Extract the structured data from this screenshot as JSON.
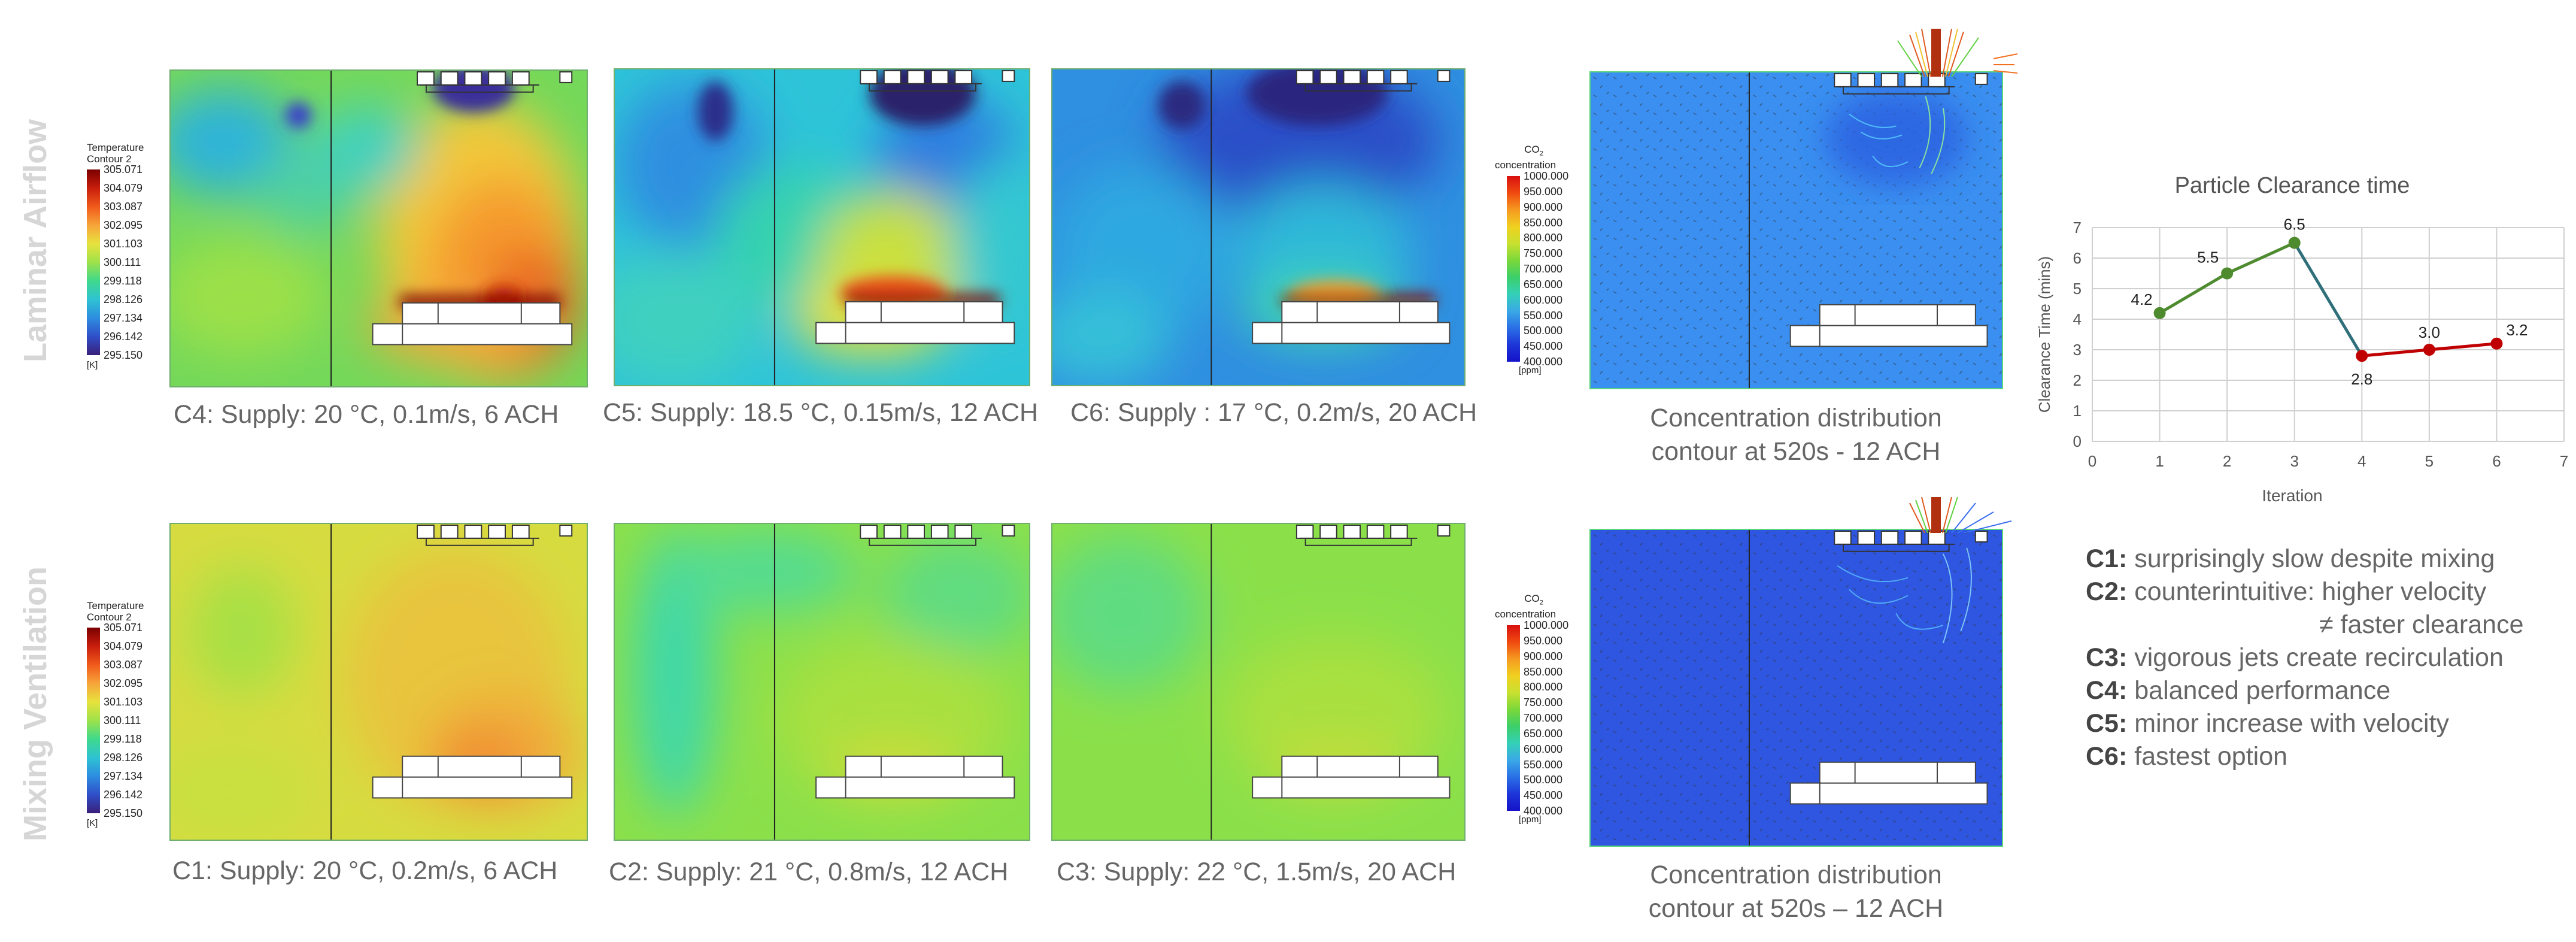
{
  "row_labels": {
    "top": "Laminar Airflow",
    "bottom": "Mixing Ventilation"
  },
  "temp_legend": {
    "title_1": "Temperature",
    "title_2": "Contour 2",
    "ticks": [
      "305.071",
      "304.079",
      "303.087",
      "302.095",
      "301.103",
      "300.111",
      "299.118",
      "298.126",
      "297.134",
      "296.142",
      "295.150"
    ],
    "unit": "[K]"
  },
  "co2_legend": {
    "title_1": "CO",
    "title_sub": "2",
    "title_2": "concentration",
    "ticks": [
      "1000.000",
      "950.000",
      "900.000",
      "850.000",
      "800.000",
      "750.000",
      "700.000",
      "650.000",
      "600.000",
      "550.000",
      "500.000",
      "450.000",
      "400.000"
    ],
    "unit": "[ppm]"
  },
  "captions": {
    "c4": "C4: Supply: 20 °C, 0.1m/s, 6 ACH",
    "c5": "C5: Supply: 18.5 °C, 0.15m/s, 12 ACH",
    "c6": "C6: Supply : 17 °C, 0.2m/s, 20 ACH",
    "c1": "C1: Supply: 20 °C, 0.2m/s, 6 ACH",
    "c2": "C2: Supply: 21 °C, 0.8m/s, 12 ACH",
    "c3": "C3: Supply: 22 °C, 1.5m/s, 20 ACH",
    "conc_top_1": "Concentration distribution",
    "conc_top_2": "contour at 520s - 12 ACH",
    "conc_bottom_1": "Concentration distribution",
    "conc_bottom_2": "contour at 520s – 12 ACH"
  },
  "notes": [
    {
      "key": "C1:",
      "text": "surprisingly slow despite mixing"
    },
    {
      "key": "C2:",
      "text": "counterintuitive: higher velocity",
      "cont": "≠ faster clearance"
    },
    {
      "key": "C3:",
      "text": "vigorous jets create recirculation"
    },
    {
      "key": "C4:",
      "text": "balanced performance"
    },
    {
      "key": "C5:",
      "text": "minor increase with velocity"
    },
    {
      "key": "C6:",
      "text": "fastest option"
    }
  ],
  "chart_data": {
    "type": "line",
    "title": "Particle Clearance time",
    "xlabel": "Iteration",
    "ylabel": "Clearance Time (mins)",
    "xlim": [
      0,
      7
    ],
    "ylim": [
      0,
      7
    ],
    "x_ticks": [
      0,
      1,
      2,
      3,
      4,
      5,
      6,
      7
    ],
    "y_ticks": [
      0,
      1,
      2,
      3,
      4,
      5,
      6,
      7
    ],
    "grid": true,
    "series": [
      {
        "color": "#4e8a2e",
        "x": [
          1,
          2,
          3
        ],
        "y": [
          4.2,
          5.5,
          6.5
        ],
        "labels": [
          "4.2",
          "5.5",
          "6.5"
        ]
      },
      {
        "color": "#2f6f7a",
        "x": [
          3,
          4
        ],
        "y": [
          6.5,
          2.8
        ],
        "labels": []
      },
      {
        "color": "#c00000",
        "x": [
          4,
          5,
          6
        ],
        "y": [
          2.8,
          3.0,
          3.2
        ],
        "labels": [
          "2.8",
          "3.0",
          "3.2"
        ]
      }
    ]
  }
}
